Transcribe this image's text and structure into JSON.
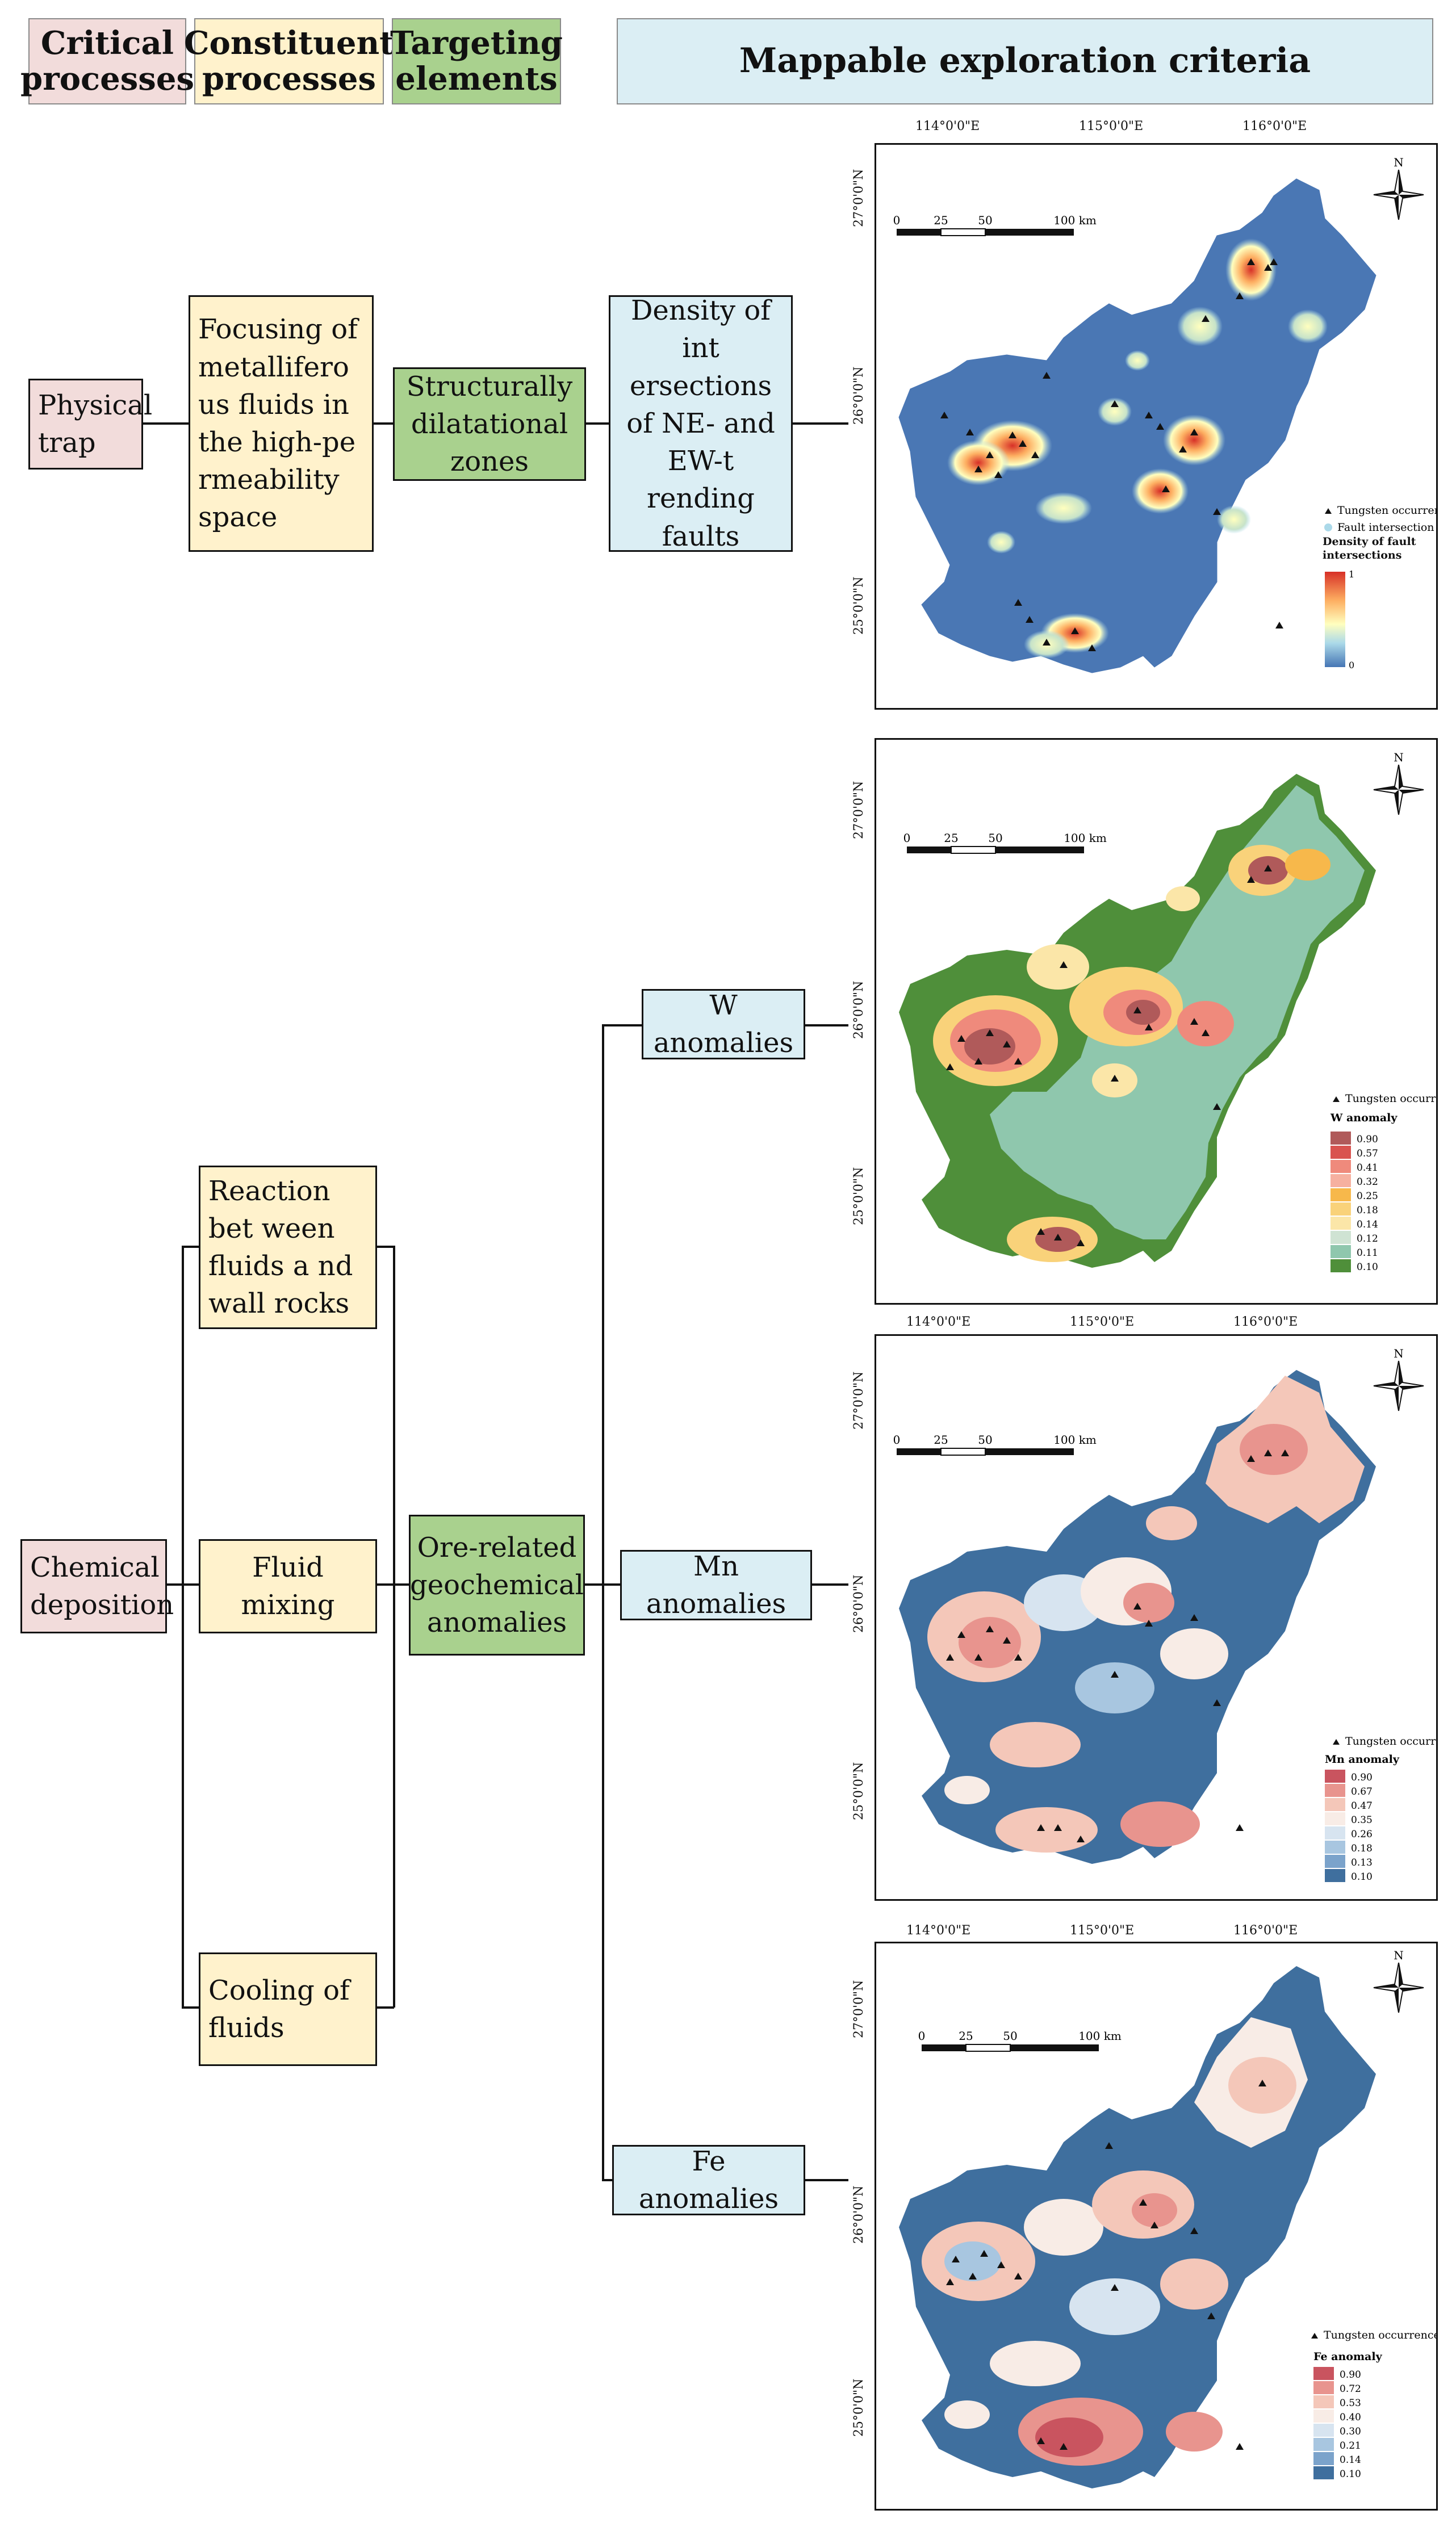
{
  "headers": {
    "critical": "Critical processes",
    "constituent": "Constituent processes",
    "targeting": "Targeting elements",
    "mappable": "Mappable exploration criteria"
  },
  "boxes": {
    "physical_trap": "Physical trap",
    "focusing": "Focusing of metallifero us fluids in the high-pe rmeability space",
    "structurally": "Structurally dilatational zones",
    "density": "Density of int ersections of NE- and EW-t rending faults",
    "chemical": "Chemical deposition",
    "reaction": "Reaction bet ween fluids a nd wall rocks",
    "fluid_mixing": "Fluid mixing",
    "cooling": "Cooling of fluids",
    "ore_related": "Ore-related geochemical anomalies",
    "w": "W anomalies",
    "mn": "Mn anomalies",
    "fe": "Fe anomalies"
  },
  "axes": {
    "lon": [
      "114°0'0\"E",
      "115°0'0\"E",
      "116°0'0\"E"
    ],
    "lat": [
      "27°0'0\"N",
      "26°0'0\"N",
      "25°0'0\"N"
    ]
  },
  "north": "N",
  "scalebar": {
    "labels": [
      "0",
      "25",
      "50",
      "100 km"
    ]
  },
  "maps": [
    {
      "id": "fault",
      "legend_items": [
        "Tungsten occurrence",
        "Fault intersection"
      ],
      "legend_title": "Density of fault intersections",
      "ramp_max": "1",
      "ramp_min": "0",
      "colors": [
        "#d73027",
        "#fdae61",
        "#ffffbf",
        "#abd9e9",
        "#4575b4"
      ]
    },
    {
      "id": "w",
      "legend_item": "Tungsten occurrence",
      "legend_title": "W anomaly",
      "classes": [
        "0.90",
        "0.57",
        "0.41",
        "0.32",
        "0.25",
        "0.18",
        "0.14",
        "0.12",
        "0.11",
        "0.10"
      ],
      "colors": [
        "#b05a5a",
        "#d9534f",
        "#ef8a7c",
        "#f6b0a0",
        "#f7b84b",
        "#f9d27a",
        "#fbe6a8",
        "#cfe3d3",
        "#8fc7ad",
        "#4f8f3a"
      ]
    },
    {
      "id": "mn",
      "legend_item": "Tungsten occurrence",
      "legend_title": "Mn anomaly",
      "classes": [
        "0.90",
        "0.67",
        "0.47",
        "0.35",
        "0.26",
        "0.18",
        "0.13",
        "0.10"
      ],
      "colors": [
        "#c9545f",
        "#e8948e",
        "#f4c7b9",
        "#f8ece6",
        "#d7e4f0",
        "#a8c6e0",
        "#7ba3cb",
        "#3f6f9e"
      ]
    },
    {
      "id": "fe",
      "legend_item": "Tungsten occurrence",
      "legend_title": "Fe anomaly",
      "classes": [
        "0.90",
        "0.72",
        "0.53",
        "0.40",
        "0.30",
        "0.21",
        "0.14",
        "0.10"
      ],
      "colors": [
        "#c9545f",
        "#e8948e",
        "#f4c7b9",
        "#f8ece6",
        "#d7e4f0",
        "#a8c6e0",
        "#7ba3cb",
        "#3f6f9e"
      ]
    }
  ]
}
